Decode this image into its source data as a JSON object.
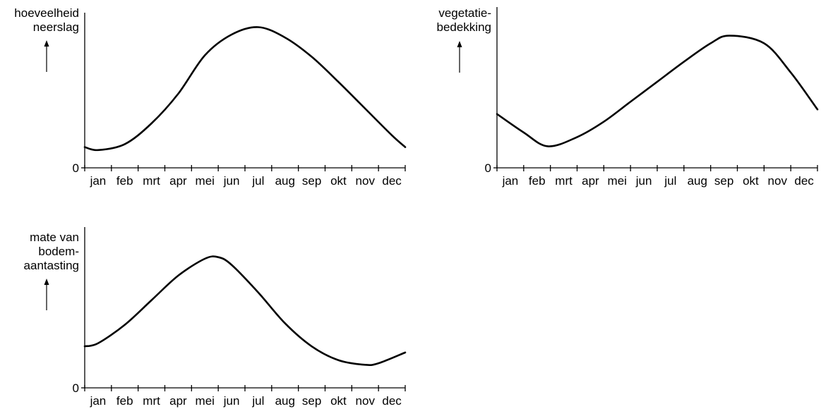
{
  "months": [
    "jan",
    "feb",
    "mrt",
    "apr",
    "mei",
    "jun",
    "jul",
    "aug",
    "sep",
    "okt",
    "nov",
    "dec"
  ],
  "chart_data": [
    {
      "type": "line",
      "ylabel_lines": [
        "hoeveelheid",
        "neerslag"
      ],
      "y_tick_label": "0",
      "categories": [
        "jan",
        "feb",
        "mrt",
        "apr",
        "mei",
        "jun",
        "jul",
        "aug",
        "sep",
        "okt",
        "nov",
        "dec"
      ],
      "x": [
        0,
        0.5,
        1.5,
        2.5,
        3.5,
        4.5,
        5.5,
        6.5,
        7.5,
        8.5,
        9.5,
        10.5,
        11.5,
        12
      ],
      "y": [
        14,
        12,
        16,
        30,
        50,
        76,
        90,
        95,
        88,
        75,
        58,
        40,
        22,
        14
      ],
      "ylim": [
        0,
        100
      ],
      "xlim": [
        0,
        12
      ]
    },
    {
      "type": "line",
      "ylabel_lines": [
        "vegetatie-",
        "bedekking"
      ],
      "y_tick_label": "0",
      "categories": [
        "jan",
        "feb",
        "mrt",
        "apr",
        "mei",
        "jun",
        "jul",
        "aug",
        "sep",
        "okt",
        "nov",
        "dec"
      ],
      "x": [
        0,
        1,
        1.9,
        3,
        4,
        5,
        6,
        7,
        8,
        8.7,
        10,
        11,
        12
      ],
      "y": [
        35,
        23,
        14,
        20,
        30,
        43,
        56,
        69,
        81,
        86,
        81,
        62,
        38
      ],
      "ylim": [
        0,
        100
      ],
      "xlim": [
        0,
        12
      ]
    },
    {
      "type": "line",
      "ylabel_lines": [
        "mate van",
        "bodem-",
        "aantasting"
      ],
      "y_tick_label": "0",
      "categories": [
        "jan",
        "feb",
        "mrt",
        "apr",
        "mei",
        "jun",
        "jul",
        "aug",
        "sep",
        "okt",
        "nov",
        "dec"
      ],
      "x": [
        0,
        0.5,
        1.5,
        2.5,
        3.5,
        4.5,
        5,
        5.5,
        6.5,
        7.5,
        8.5,
        9.5,
        10.5,
        11,
        12
      ],
      "y": [
        27,
        29,
        41,
        57,
        73,
        84,
        85,
        80,
        62,
        42,
        27,
        18,
        15,
        16,
        23
      ],
      "ylim": [
        0,
        100
      ],
      "xlim": [
        0,
        12
      ]
    }
  ]
}
